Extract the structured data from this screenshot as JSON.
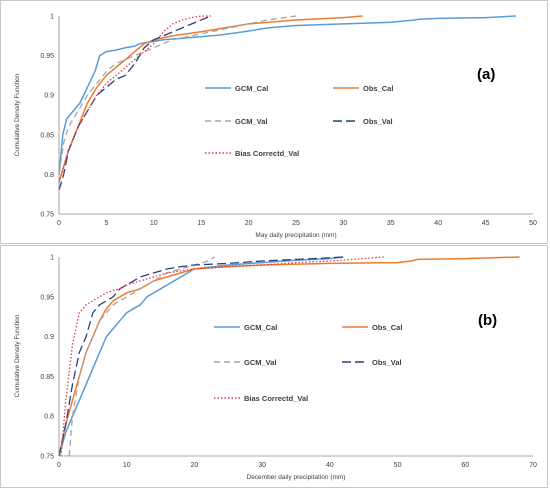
{
  "chart_data": [
    {
      "type": "line",
      "panel_label": "(a)",
      "xlabel": "May daily precipitation (mm)",
      "ylabel": "Cumulative Density Function",
      "xlim": [
        0,
        50
      ],
      "ylim": [
        0.75,
        1
      ],
      "xticks": [
        "0",
        "5",
        "10",
        "15",
        "20",
        "25",
        "30",
        "35",
        "40",
        "45",
        "50"
      ],
      "yticks": [
        "0.75",
        "0.8",
        "0.85",
        "0.9",
        "0.95",
        "1"
      ],
      "grid": false,
      "legend_position": "right",
      "series": [
        {
          "name": "GCM_Cal",
          "color": "#5B9BD5",
          "dash": "solid",
          "x": [
            0,
            0.4,
            0.8,
            1.5,
            2.2,
            3,
            3.8,
            4.3,
            5,
            6,
            7,
            8,
            8.5,
            9.5,
            11,
            13,
            15,
            17,
            19.5,
            22,
            25,
            30,
            35,
            37.5,
            38,
            40,
            45,
            48.2
          ],
          "y": [
            0.8,
            0.85,
            0.87,
            0.88,
            0.89,
            0.91,
            0.93,
            0.95,
            0.955,
            0.957,
            0.96,
            0.962,
            0.965,
            0.967,
            0.97,
            0.972,
            0.974,
            0.976,
            0.98,
            0.985,
            0.988,
            0.99,
            0.992,
            0.995,
            0.996,
            0.997,
            0.998,
            1
          ]
        },
        {
          "name": "Obs_Cal",
          "color": "#ED7D31",
          "dash": "solid",
          "x": [
            0,
            0.5,
            1,
            2,
            3,
            4,
            5,
            6,
            7,
            8,
            9,
            10,
            12,
            15,
            20,
            25,
            30,
            32
          ],
          "y": [
            0.79,
            0.81,
            0.83,
            0.86,
            0.89,
            0.91,
            0.925,
            0.935,
            0.945,
            0.955,
            0.965,
            0.97,
            0.975,
            0.98,
            0.99,
            0.995,
            0.998,
            1
          ]
        },
        {
          "name": "GCM_Val",
          "color": "#A5A5A5",
          "dash": "6,4",
          "x": [
            0,
            0.5,
            1,
            2,
            3,
            4,
            5,
            6,
            7,
            8,
            9,
            10,
            11,
            12,
            14,
            16,
            18,
            20,
            22,
            25
          ],
          "y": [
            0.8,
            0.84,
            0.86,
            0.88,
            0.9,
            0.915,
            0.93,
            0.94,
            0.945,
            0.95,
            0.955,
            0.96,
            0.965,
            0.97,
            0.975,
            0.98,
            0.985,
            0.99,
            0.995,
            1
          ]
        },
        {
          "name": "Obs_Val",
          "color": "#264478",
          "dash": "9,4",
          "x": [
            0,
            0.5,
            1,
            2,
            3,
            4,
            5,
            6,
            7,
            8,
            8.5,
            9,
            9.5,
            10,
            12,
            14,
            16
          ],
          "y": [
            0.78,
            0.8,
            0.83,
            0.86,
            0.88,
            0.9,
            0.91,
            0.92,
            0.925,
            0.94,
            0.95,
            0.96,
            0.965,
            0.97,
            0.98,
            0.99,
            1
          ]
        },
        {
          "name": "Bias Correctd_Val",
          "color": "#E0384C",
          "dash": "1.5,2",
          "x": [
            0,
            0.5,
            1,
            2,
            3,
            4,
            5,
            6,
            7,
            8,
            9,
            10,
            11,
            12,
            13,
            14,
            15,
            16
          ],
          "y": [
            0.79,
            0.81,
            0.83,
            0.86,
            0.88,
            0.9,
            0.915,
            0.925,
            0.935,
            0.945,
            0.955,
            0.965,
            0.98,
            0.99,
            0.995,
            0.998,
            1,
            1
          ]
        }
      ]
    },
    {
      "type": "line",
      "panel_label": "(b)",
      "xlabel": "December daily precipitation (mm)",
      "ylabel": "Cumulative Density Function",
      "xlim": [
        0,
        70
      ],
      "ylim": [
        0.75,
        1
      ],
      "xticks": [
        "0",
        "10",
        "20",
        "30",
        "40",
        "50",
        "60",
        "70"
      ],
      "yticks": [
        "0.75",
        "0.8",
        "0.85",
        "0.9",
        "0.95",
        "1"
      ],
      "grid": false,
      "legend_position": "right",
      "series": [
        {
          "name": "GCM_Cal",
          "color": "#5B9BD5",
          "dash": "solid",
          "x": [
            0,
            1,
            2,
            3,
            4,
            5,
            6,
            7,
            8,
            9,
            10,
            11,
            12,
            13,
            14,
            15,
            16,
            17,
            18,
            19,
            20,
            25,
            30,
            35,
            40,
            42
          ],
          "y": [
            0.75,
            0.78,
            0.8,
            0.82,
            0.84,
            0.86,
            0.88,
            0.9,
            0.91,
            0.92,
            0.93,
            0.935,
            0.94,
            0.95,
            0.955,
            0.96,
            0.965,
            0.97,
            0.975,
            0.98,
            0.985,
            0.99,
            0.993,
            0.996,
            0.998,
            1
          ]
        },
        {
          "name": "Obs_Cal",
          "color": "#ED7D31",
          "dash": "solid",
          "x": [
            0,
            1,
            2,
            3,
            4,
            5,
            6,
            7,
            8,
            10,
            12,
            14,
            16,
            18,
            20,
            25,
            30,
            40,
            50,
            52,
            53,
            60,
            68
          ],
          "y": [
            0.75,
            0.79,
            0.82,
            0.85,
            0.88,
            0.9,
            0.92,
            0.935,
            0.945,
            0.955,
            0.96,
            0.97,
            0.975,
            0.98,
            0.985,
            0.988,
            0.99,
            0.992,
            0.993,
            0.995,
            0.997,
            0.998,
            1
          ]
        },
        {
          "name": "GCM_Val",
          "color": "#A5A5A5",
          "dash": "6,4",
          "x": [
            1.5,
            2,
            3,
            4,
            5,
            6,
            7,
            8,
            9,
            10,
            12,
            14,
            16,
            18,
            20,
            22,
            23
          ],
          "y": [
            0.75,
            0.8,
            0.85,
            0.88,
            0.9,
            0.92,
            0.93,
            0.94,
            0.945,
            0.95,
            0.96,
            0.97,
            0.98,
            0.985,
            0.99,
            0.995,
            1
          ]
        },
        {
          "name": "Obs_Val",
          "color": "#264478",
          "dash": "9,4",
          "x": [
            0,
            1,
            2,
            3,
            4,
            5,
            6,
            7,
            8,
            9,
            10,
            11,
            12,
            14,
            16,
            18,
            20,
            25,
            30,
            35,
            40,
            42
          ],
          "y": [
            0.75,
            0.79,
            0.84,
            0.88,
            0.9,
            0.93,
            0.94,
            0.945,
            0.95,
            0.96,
            0.965,
            0.97,
            0.975,
            0.98,
            0.985,
            0.988,
            0.99,
            0.992,
            0.995,
            0.997,
            0.999,
            1
          ]
        },
        {
          "name": "Bias Correctd_Val",
          "color": "#E0384C",
          "dash": "1.5,2",
          "x": [
            0.3,
            1,
            2,
            3,
            4,
            5,
            6,
            7,
            8,
            9,
            10,
            12,
            14,
            16,
            20,
            25,
            30,
            35,
            40,
            45,
            48
          ],
          "y": [
            0.75,
            0.82,
            0.89,
            0.93,
            0.94,
            0.945,
            0.95,
            0.955,
            0.958,
            0.96,
            0.965,
            0.97,
            0.975,
            0.98,
            0.985,
            0.988,
            0.99,
            0.993,
            0.995,
            0.998,
            1
          ]
        }
      ]
    }
  ],
  "panels": [
    {
      "legend": [
        "GCM_Cal",
        "Obs_Cal",
        "GCM_Val",
        "Obs_Val",
        "Bias Correctd_Val"
      ]
    },
    {
      "legend": [
        "GCM_Cal",
        "Obs_Cal",
        "GCM_Val",
        "Obs_Val",
        "Bias Correctd_Val"
      ]
    }
  ]
}
